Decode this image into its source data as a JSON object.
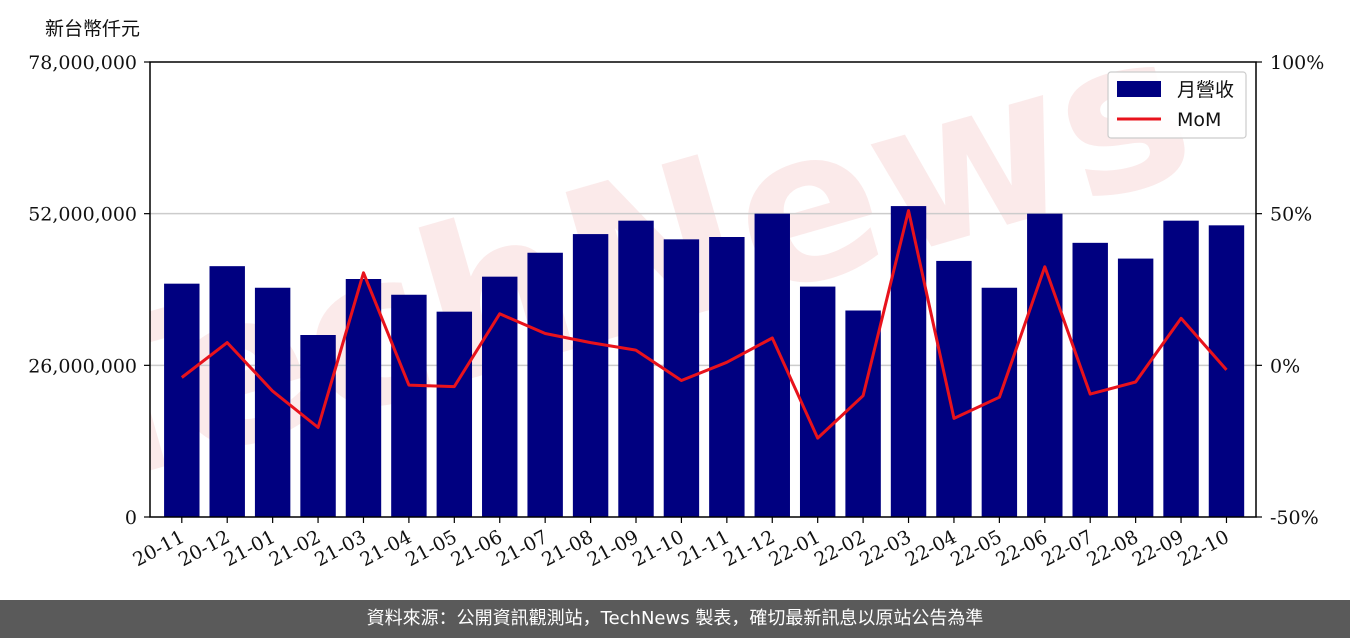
{
  "unit_label": "新台幣仟元",
  "footer_text": "資料來源：公開資訊觀測站，TechNews 製表，確切最新訊息以原站公告為準",
  "watermark_text": "TechNews",
  "chart_data": {
    "type": "bar",
    "categories": [
      "20-11",
      "20-12",
      "21-01",
      "21-02",
      "21-03",
      "21-04",
      "21-05",
      "21-06",
      "21-07",
      "21-08",
      "21-09",
      "21-10",
      "21-11",
      "21-12",
      "22-01",
      "22-02",
      "22-03",
      "22-04",
      "22-05",
      "22-06",
      "22-07",
      "22-08",
      "22-09",
      "22-10"
    ],
    "series": [
      {
        "name": "月營收",
        "axis": "left",
        "type": "bar",
        "color": "#000080",
        "values": [
          40000000,
          43000000,
          39300000,
          31200000,
          40800000,
          38100000,
          35200000,
          41200000,
          45300000,
          48500000,
          50800000,
          47600000,
          48000000,
          52000000,
          39500000,
          35400000,
          53300000,
          43900000,
          39300000,
          52000000,
          47000000,
          44300000,
          50800000,
          50000000
        ]
      },
      {
        "name": "MoM",
        "axis": "right",
        "type": "line",
        "color": "#e8121c",
        "values": [
          -4,
          7.5,
          -8.5,
          -20.5,
          30.5,
          -6.5,
          -7,
          17,
          10.5,
          7.5,
          5,
          -5,
          1,
          9,
          -24,
          -10,
          51,
          -17.5,
          -10.5,
          32.5,
          -9.5,
          -5.5,
          15.5,
          -1.5
        ]
      }
    ],
    "y_left": {
      "ylim": [
        0,
        78000000
      ],
      "ticks": [
        "0",
        "26,000,000",
        "52,000,000",
        "78,000,000"
      ]
    },
    "y_right": {
      "ylim": [
        -50,
        100
      ],
      "ticks": [
        "-50%",
        "0%",
        "50%",
        "100%"
      ]
    },
    "grid": "horizontal",
    "legend_position": "top-right"
  }
}
